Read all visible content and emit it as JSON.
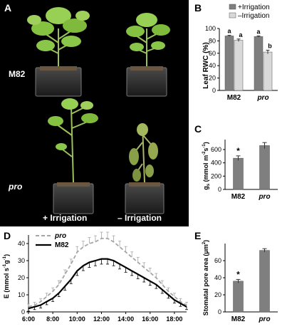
{
  "panel_a": {
    "letter": "A",
    "rows": [
      "M82",
      "pro"
    ],
    "cols": [
      "+ Irrigation",
      "– Irrigation"
    ]
  },
  "panel_b": {
    "letter": "B",
    "legend": [
      "+Irrigation",
      "–Irrigation"
    ],
    "ylabel": "Leaf RWC (%)",
    "yticks": [
      "0",
      "20",
      "40",
      "60",
      "80",
      "100"
    ],
    "categories": [
      "M82",
      "pro"
    ],
    "sig": [
      "a",
      "a",
      "a",
      "b"
    ]
  },
  "panel_c": {
    "letter": "C",
    "ylabel_main": "g",
    "ylabel_sub": "s",
    "ylabel_rest": " (mmol m",
    "ylabel_sup1": "-2",
    "ylabel_mid": "s",
    "ylabel_sup2": "-1",
    "ylabel_end": ")",
    "yticks": [
      "0",
      "200",
      "400",
      "600"
    ],
    "categories": [
      "M82",
      "pro"
    ],
    "sig": "*"
  },
  "panel_d": {
    "letter": "D",
    "legend": [
      "pro",
      "M82"
    ],
    "ylabel_pre": "E (mmol s",
    "ylabel_sup1": "-1",
    "ylabel_mid": "g",
    "ylabel_sup2": "-1",
    "ylabel_end": ")",
    "yticks": [
      "0",
      "10",
      "20",
      "30",
      "40"
    ],
    "xticks": [
      "6:00",
      "8:00",
      "10:00",
      "12:00",
      "14:00",
      "16:00",
      "18:00"
    ]
  },
  "panel_e": {
    "letter": "E",
    "ylabel_pre": "Stomatal pore area (μm",
    "ylabel_sup": "2",
    "ylabel_end": ")",
    "yticks": [
      "0",
      "20",
      "40",
      "60"
    ],
    "categories": [
      "M82",
      "pro"
    ],
    "sig": "*"
  },
  "chart_data": [
    {
      "panel": "B",
      "type": "bar",
      "ylabel": "Leaf RWC (%)",
      "ylim": [
        0,
        100
      ],
      "categories": [
        "M82",
        "pro"
      ],
      "series": [
        {
          "name": "+Irrigation",
          "values": [
            88,
            87
          ],
          "errors": [
            1,
            1
          ],
          "color": "#7f7f7f"
        },
        {
          "name": "–Irrigation",
          "values": [
            81,
            62
          ],
          "errors": [
            2,
            3
          ],
          "color": "#d9d9d9"
        }
      ],
      "annotations": [
        "a",
        "a",
        "a",
        "b"
      ],
      "legend_position": "top"
    },
    {
      "panel": "C",
      "type": "bar",
      "ylim": [
        0,
        750
      ],
      "categories": [
        "M82",
        "pro"
      ],
      "values": [
        470,
        660
      ],
      "errors": [
        35,
        45
      ],
      "color": "#7f7f7f",
      "annotations": [
        "*",
        ""
      ]
    },
    {
      "panel": "D",
      "type": "line",
      "ylim": [
        0,
        45
      ],
      "xlim": [
        "6:00",
        "19:00"
      ],
      "x": [
        "6:00",
        "6:30",
        "7:00",
        "7:30",
        "8:00",
        "8:30",
        "9:00",
        "9:30",
        "10:00",
        "10:30",
        "11:00",
        "11:30",
        "12:00",
        "12:30",
        "13:00",
        "13:30",
        "14:00",
        "14:30",
        "15:00",
        "15:30",
        "16:00",
        "16:30",
        "17:00",
        "17:30",
        "18:00",
        "18:30",
        "19:00"
      ],
      "series": [
        {
          "name": "pro",
          "style": "dashed",
          "color": "#a6a6a6",
          "values": [
            3,
            4,
            6,
            9,
            12,
            16,
            22,
            28,
            35,
            38,
            40,
            41,
            43,
            43,
            41,
            38,
            35,
            32,
            29,
            26,
            23,
            20,
            16,
            12,
            9,
            6,
            4
          ]
        },
        {
          "name": "M82",
          "style": "solid",
          "color": "#000000",
          "values": [
            2,
            3,
            4,
            6,
            8,
            11,
            15,
            19,
            24,
            27,
            29,
            30,
            31,
            31,
            30,
            28,
            26,
            24,
            22,
            20,
            18,
            16,
            13,
            10,
            7,
            5,
            3
          ]
        }
      ],
      "legend_position": "top-left"
    },
    {
      "panel": "E",
      "type": "bar",
      "ylim": [
        0,
        80
      ],
      "categories": [
        "M82",
        "pro"
      ],
      "values": [
        36,
        72
      ],
      "errors": [
        2,
        2
      ],
      "color": "#7f7f7f",
      "annotations": [
        "*",
        ""
      ]
    }
  ]
}
